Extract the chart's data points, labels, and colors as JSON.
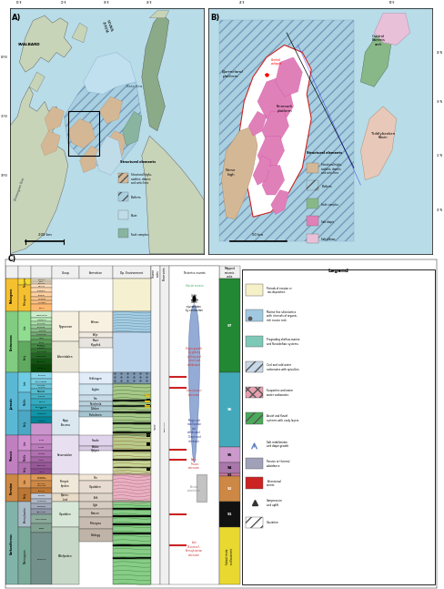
{
  "fig_width": 4.74,
  "fig_height": 6.5,
  "dpi": 100,
  "map_A": {
    "label": "A)",
    "bg_color": "#b8dce8",
    "land_color": "#c8d4b8",
    "platform_color": "#a8d0e0",
    "platform_hatch": "///",
    "basin_color": "#c0dce8",
    "highs_color": "#d4b896",
    "fault_color": "#88b4a0"
  },
  "map_B": {
    "label": "B)",
    "bg_color": "#b8dce8",
    "platform_hatch_color": "#a8d0e0",
    "highs_color": "#d4b896",
    "salt_diapir_color": "#e080b8",
    "salt_pillow_color": "#e8c0d8",
    "fault_color": "#88b4a0",
    "outline_color": "white"
  },
  "chart_label": "C)",
  "era_colors": {
    "Paleogene": "#f5c842",
    "Cretaceous": "#80cc80",
    "Jurassic": "#5bbcd4",
    "Triassic": "#c080c0",
    "Permian": "#cc8844",
    "Carboniferous": "#80b4aa"
  },
  "seismic_colors": {
    "S7": "#228833",
    "S6": "#44aabb",
    "S5": "#cc99cc",
    "S4": "#bb88bb",
    "S3": "#aa7799",
    "S2": "#cc8844",
    "S1": "#111111",
    "subsalt": "#e8d870"
  },
  "dep_env_beige": "#f5f0d8",
  "tectonic_red": "#cc2222",
  "tectonic_gray": "#888888",
  "tectonic_green": "#44aa88",
  "diapir_blue": "#7090c8"
}
